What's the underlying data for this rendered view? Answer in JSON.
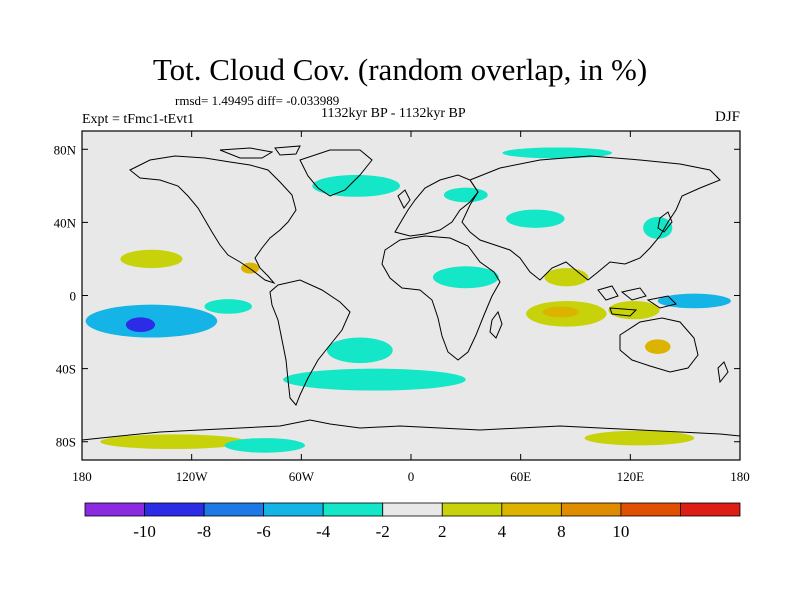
{
  "title": "Tot. Cloud Cov. (random overlap, in %)",
  "stats": "rmsd= 1.49495 diff= -0.033989",
  "experiment": "Expt = tFmc1-tEvt1",
  "period": "1132kyr BP - 1132kyr BP",
  "season": "DJF",
  "map": {
    "projection": "cylindrical-equidistant",
    "lon_range": [
      -180,
      180
    ],
    "lat_range": [
      -90,
      90
    ],
    "background_color": "#e8e8e8",
    "x_ticks": [
      {
        "lon": -180,
        "label": "180"
      },
      {
        "lon": -120,
        "label": "120W"
      },
      {
        "lon": -60,
        "label": "60W"
      },
      {
        "lon": 0,
        "label": "0"
      },
      {
        "lon": 60,
        "label": "60E"
      },
      {
        "lon": 120,
        "label": "120E"
      },
      {
        "lon": 180,
        "label": "180"
      }
    ],
    "y_ticks": [
      {
        "lat": 80,
        "label": "80N"
      },
      {
        "lat": 40,
        "label": "40N"
      },
      {
        "lat": 0,
        "label": "0"
      },
      {
        "lat": -40,
        "label": "40S"
      },
      {
        "lat": -80,
        "label": "80S"
      }
    ]
  },
  "colorbar": {
    "colors": [
      "#8a2be2",
      "#2c2ce6",
      "#1e78e6",
      "#14b4e6",
      "#14e6c8",
      "#e8e8e8",
      "#c8d20a",
      "#dcb400",
      "#e08c00",
      "#e05000",
      "#dc1e14"
    ],
    "labels": [
      "-10",
      "-8",
      "-6",
      "-4",
      "-2",
      "2",
      "4",
      "8",
      "10"
    ]
  },
  "anomaly_patches": [
    {
      "name": "south-pacific-negative",
      "lon": -142,
      "lat": -14,
      "rx": 36,
      "ry": 9,
      "level": -4
    },
    {
      "name": "south-pacific-core",
      "lon": -148,
      "lat": -16,
      "rx": 8,
      "ry": 4,
      "level": -8
    },
    {
      "name": "north-pacific-positive",
      "lon": -142,
      "lat": 20,
      "rx": 17,
      "ry": 5,
      "level": 2
    },
    {
      "name": "eastern-pacific-negative",
      "lon": -100,
      "lat": -6,
      "rx": 13,
      "ry": 4,
      "level": -2
    },
    {
      "name": "central-america-positive",
      "lon": -88,
      "lat": 15,
      "rx": 5,
      "ry": 3,
      "level": 4
    },
    {
      "name": "south-atlantic-negative",
      "lon": -28,
      "lat": -30,
      "rx": 18,
      "ry": 7,
      "level": -2
    },
    {
      "name": "southern-ocean-negative",
      "lon": -20,
      "lat": -46,
      "rx": 50,
      "ry": 6,
      "level": -2
    },
    {
      "name": "north-atlantic-negative",
      "lon": -30,
      "lat": 60,
      "rx": 24,
      "ry": 6,
      "level": -2
    },
    {
      "name": "europe-negative",
      "lon": 30,
      "lat": 55,
      "rx": 12,
      "ry": 4,
      "level": -2
    },
    {
      "name": "central-asia-negative",
      "lon": 68,
      "lat": 42,
      "rx": 16,
      "ry": 5,
      "level": -2
    },
    {
      "name": "arabia-negative",
      "lon": 30,
      "lat": 10,
      "rx": 18,
      "ry": 6,
      "level": -2
    },
    {
      "name": "india-positive",
      "lon": 85,
      "lat": 10,
      "rx": 12,
      "ry": 5,
      "level": 2
    },
    {
      "name": "indian-ocean-positive",
      "lon": 85,
      "lat": -10,
      "rx": 22,
      "ry": 7,
      "level": 2
    },
    {
      "name": "indian-ocean-core",
      "lon": 82,
      "lat": -9,
      "rx": 10,
      "ry": 3,
      "level": 4
    },
    {
      "name": "maritime-positive",
      "lon": 122,
      "lat": -8,
      "rx": 14,
      "ry": 5,
      "level": 2
    },
    {
      "name": "west-pacific-negative",
      "lon": 155,
      "lat": -3,
      "rx": 20,
      "ry": 4,
      "level": -4
    },
    {
      "name": "australia-positive",
      "lon": 135,
      "lat": -28,
      "rx": 7,
      "ry": 4,
      "level": 4
    },
    {
      "name": "japan-negative",
      "lon": 135,
      "lat": 37,
      "rx": 8,
      "ry": 6,
      "level": -2
    },
    {
      "name": "antarctic-positive",
      "lon": -130,
      "lat": -80,
      "rx": 40,
      "ry": 4,
      "level": 2
    },
    {
      "name": "antarctic-negative",
      "lon": -80,
      "lat": -82,
      "rx": 22,
      "ry": 4,
      "level": -2
    },
    {
      "name": "east-antarctic-positive",
      "lon": 125,
      "lat": -78,
      "rx": 30,
      "ry": 4,
      "level": 2
    },
    {
      "name": "arctic-negative",
      "lon": 80,
      "lat": 78,
      "rx": 30,
      "ry": 3,
      "level": -2
    }
  ]
}
